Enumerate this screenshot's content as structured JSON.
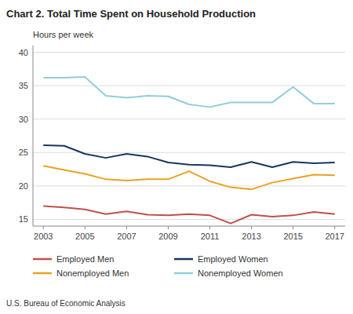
{
  "chart_data": {
    "type": "line",
    "title": "Chart 2. Total Time Spent on Household Production",
    "y_label": "Hours per week",
    "annotations": [
      "U.S. Bureau of Economic Analysis"
    ],
    "x": [
      2003,
      2004,
      2005,
      2006,
      2007,
      2008,
      2009,
      2010,
      2011,
      2012,
      2013,
      2014,
      2015,
      2016,
      2017
    ],
    "series": [
      {
        "name": "Nonemployed Women",
        "color": "#92cddc",
        "values": [
          36.2,
          36.2,
          36.3,
          33.5,
          33.2,
          33.5,
          33.4,
          32.2,
          31.8,
          32.5,
          32.5,
          32.5,
          34.8,
          32.3,
          32.3
        ]
      },
      {
        "name": "Employed Women",
        "color": "#17375e",
        "values": [
          26.1,
          26.0,
          24.8,
          24.2,
          24.8,
          24.4,
          23.5,
          23.2,
          23.1,
          22.8,
          23.6,
          22.8,
          23.6,
          23.4,
          23.5
        ]
      },
      {
        "name": "Nonemployed Men",
        "color": "#e8a225",
        "values": [
          23.0,
          22.4,
          21.8,
          21.0,
          20.8,
          21.0,
          21.0,
          22.2,
          20.7,
          19.8,
          19.5,
          20.5,
          21.1,
          21.7,
          21.6
        ]
      },
      {
        "name": "Employed Men",
        "color": "#c0504d",
        "values": [
          17.0,
          16.8,
          16.5,
          15.8,
          16.2,
          15.7,
          15.6,
          15.8,
          15.6,
          14.4,
          15.7,
          15.4,
          15.6,
          16.1,
          15.8
        ]
      }
    ],
    "xlim": [
      2002.5,
      2017.5
    ],
    "xticks": [
      2003,
      2005,
      2007,
      2009,
      2011,
      2013,
      2015,
      2017
    ],
    "ylim": [
      14,
      41
    ],
    "yticks": [
      15,
      20,
      25,
      30,
      35,
      40
    ],
    "grid": true,
    "legend": "bottom"
  }
}
